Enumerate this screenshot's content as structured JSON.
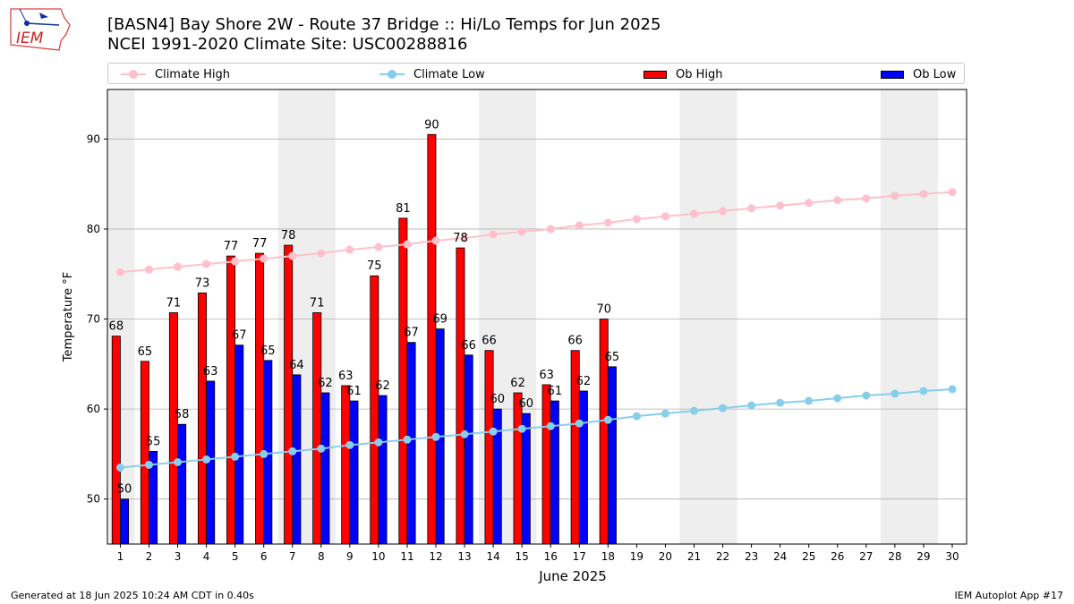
{
  "header": {
    "title_line1": "[BASN4] Bay Shore 2W - Route 37 Bridge :: Hi/Lo Temps for Jun 2025",
    "title_line2": "NCEI 1991-2020 Climate Site: USC00288816"
  },
  "logo": {
    "text": "IEM"
  },
  "footer": {
    "generated": "Generated at 18 Jun 2025 10:24 AM CDT in 0.40s",
    "app": "IEM Autoplot App #17"
  },
  "colors": {
    "climate_high": "#ffc0cb",
    "climate_low": "#87ceeb",
    "ob_high": "#ff0000",
    "ob_low": "#0000ff",
    "weekend_band": "#eeeeee",
    "grid": "#b0b0b0"
  },
  "chart_data": {
    "type": "bar",
    "xlabel": "June 2025",
    "ylabel": "Temperature °F",
    "ylim": [
      45,
      95.5
    ],
    "xlim": [
      0.55,
      30.5
    ],
    "yticks": [
      50,
      60,
      70,
      80,
      90
    ],
    "grid": "horizontal",
    "legend": {
      "placement": "top",
      "entries": [
        "Climate High",
        "Climate Low",
        "Ob High",
        "Ob Low"
      ]
    },
    "days": [
      1,
      2,
      3,
      4,
      5,
      6,
      7,
      8,
      9,
      10,
      11,
      12,
      13,
      14,
      15,
      16,
      17,
      18,
      19,
      20,
      21,
      22,
      23,
      24,
      25,
      26,
      27,
      28,
      29,
      30
    ],
    "shaded_day_ranges": [
      [
        0.5,
        1.5
      ],
      [
        6.5,
        8.5
      ],
      [
        13.5,
        15.5
      ],
      [
        20.5,
        22.5
      ],
      [
        27.5,
        29.5
      ]
    ],
    "series": [
      {
        "name": "Ob High",
        "kind": "bar",
        "values": [
          68,
          65,
          71,
          73,
          77,
          77,
          78,
          71,
          63,
          75,
          81,
          90,
          78,
          66,
          62,
          63,
          66,
          70
        ],
        "plotted": [
          68.1,
          65.3,
          70.7,
          72.9,
          77.0,
          77.3,
          78.2,
          70.7,
          62.6,
          74.8,
          81.2,
          90.5,
          77.9,
          66.5,
          61.8,
          62.7,
          66.5,
          70.0
        ]
      },
      {
        "name": "Ob Low",
        "kind": "bar",
        "values": [
          50,
          55,
          58,
          63,
          67,
          65,
          64,
          62,
          61,
          62,
          67,
          69,
          66,
          60,
          60,
          61,
          62,
          65
        ],
        "plotted": [
          50.0,
          55.3,
          58.3,
          63.1,
          67.1,
          65.4,
          63.8,
          61.8,
          60.9,
          61.5,
          67.4,
          68.9,
          66.0,
          60.0,
          59.5,
          60.9,
          62.0,
          64.7
        ]
      },
      {
        "name": "Climate High",
        "kind": "line",
        "values": [
          75.2,
          75.5,
          75.8,
          76.1,
          76.4,
          76.7,
          77.0,
          77.3,
          77.7,
          78.0,
          78.3,
          78.7,
          79.0,
          79.4,
          79.7,
          80.0,
          80.4,
          80.7,
          81.1,
          81.4,
          81.7,
          82.0,
          82.3,
          82.6,
          82.9,
          83.2,
          83.4,
          83.7,
          83.9,
          84.1
        ]
      },
      {
        "name": "Climate Low",
        "kind": "line",
        "values": [
          53.5,
          53.8,
          54.1,
          54.4,
          54.7,
          55.0,
          55.3,
          55.6,
          56.0,
          56.3,
          56.6,
          56.9,
          57.2,
          57.5,
          57.8,
          58.1,
          58.4,
          58.8,
          59.2,
          59.5,
          59.8,
          60.1,
          60.4,
          60.7,
          60.9,
          61.2,
          61.5,
          61.7,
          62.0,
          62.2
        ]
      }
    ]
  }
}
